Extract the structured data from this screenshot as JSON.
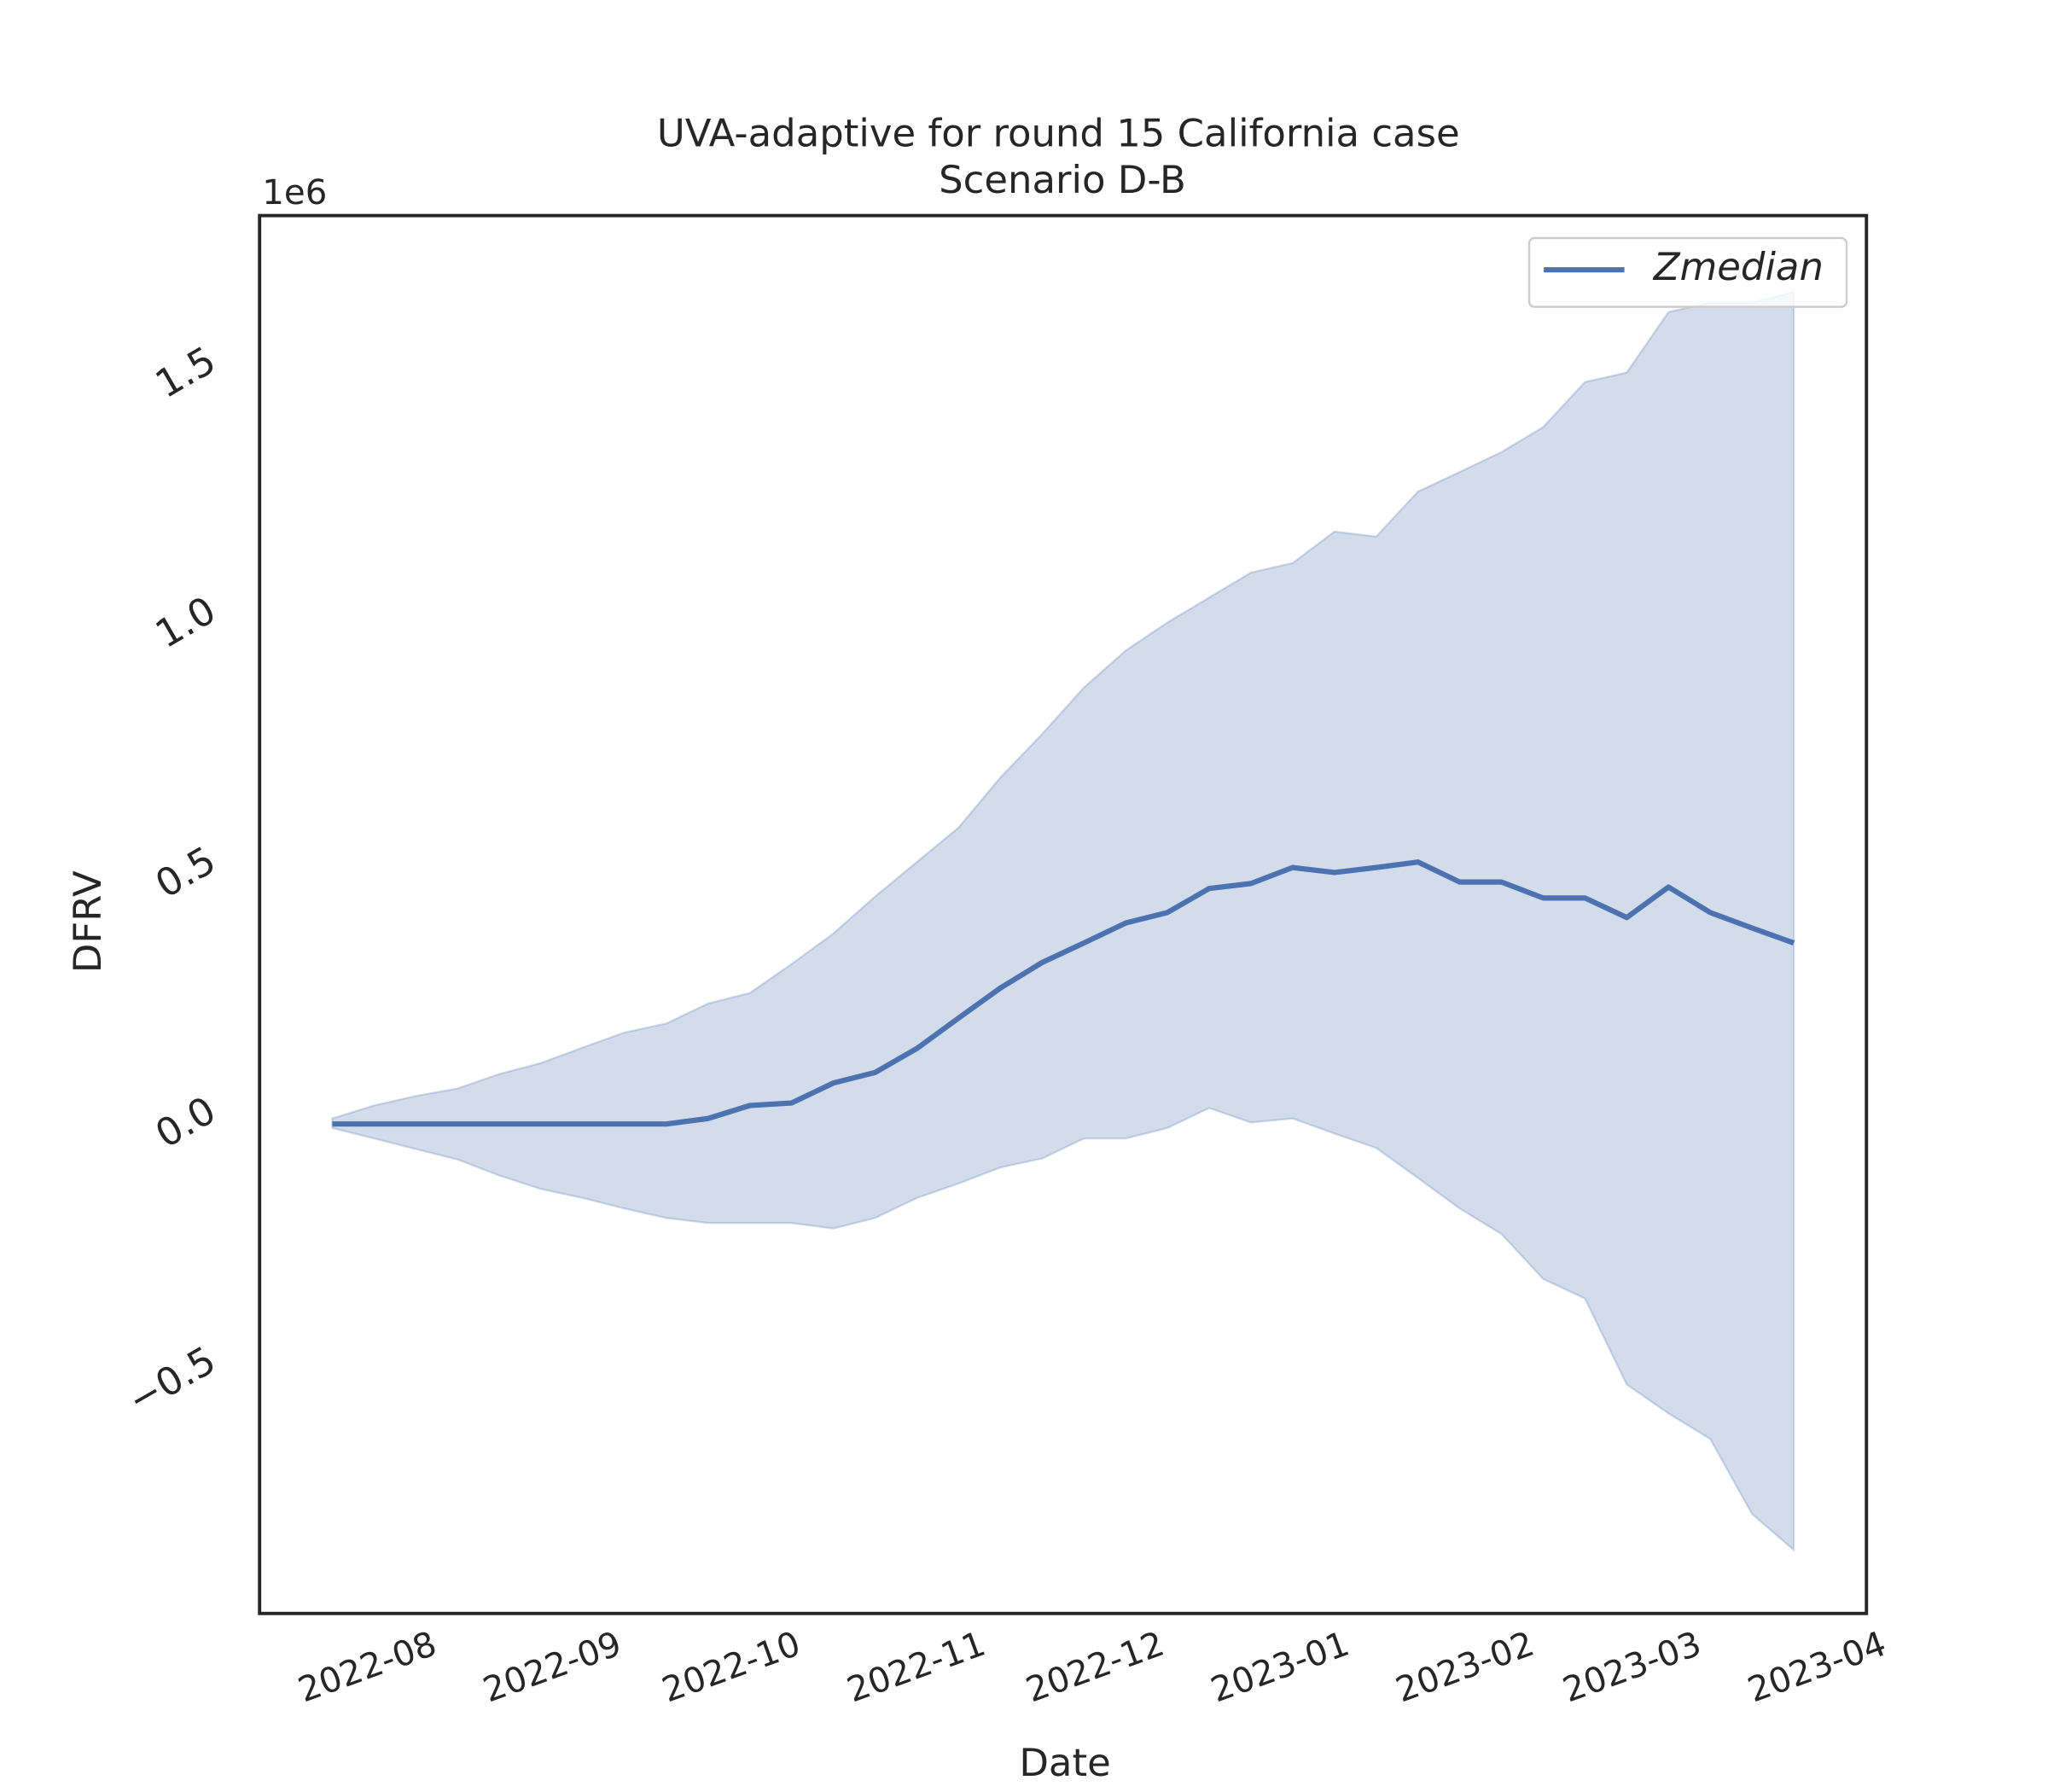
{
  "chart_data": {
    "type": "line",
    "title": "UVA-adaptive for round 15 California case",
    "subtitle": "Scenario D-B",
    "x_label": "Date",
    "y_label": "DFRV",
    "y_offset_label": "1e6",
    "x": [
      0,
      1,
      2,
      3,
      4,
      5,
      6,
      7,
      8,
      9,
      10,
      11,
      12,
      13,
      14,
      15,
      16,
      17,
      18,
      19,
      20,
      21,
      22,
      23,
      24,
      25,
      26,
      27,
      28,
      29,
      30,
      31,
      32,
      33,
      34,
      35
    ],
    "xlim": [
      -1.74,
      36.74
    ],
    "xticks": [
      {
        "value": 0.857,
        "label": "2022-08"
      },
      {
        "value": 5.286,
        "label": "2022-09"
      },
      {
        "value": 9.571,
        "label": "2022-10"
      },
      {
        "value": 14,
        "label": "2022-11"
      },
      {
        "value": 18.286,
        "label": "2022-12"
      },
      {
        "value": 22.714,
        "label": "2023-01"
      },
      {
        "value": 27.143,
        "label": "2023-02"
      },
      {
        "value": 31.143,
        "label": "2023-03"
      },
      {
        "value": 35.571,
        "label": "2023-04"
      }
    ],
    "ylim": [
      -979000,
      1817000
    ],
    "yticks": [
      {
        "value": -500000,
        "label": "−0.5"
      },
      {
        "value": 0,
        "label": "0.0"
      },
      {
        "value": 500000,
        "label": "0.5"
      },
      {
        "value": 1000000,
        "label": "1.0"
      },
      {
        "value": 1500000,
        "label": "1.5"
      }
    ],
    "series": [
      {
        "name": "Zmedian",
        "color": "#4c72b0",
        "values": [
          0,
          0,
          0,
          0,
          0,
          0,
          0,
          0,
          0,
          11000,
          37000,
          42000,
          82000,
          103000,
          151000,
          212000,
          272000,
          323000,
          362000,
          402000,
          423000,
          471000,
          481000,
          513000,
          503000,
          513000,
          524000,
          484000,
          484000,
          452000,
          452000,
          413000,
          474000,
          423000,
          392000,
          362000
        ]
      }
    ],
    "band": {
      "color": "#4c72b0",
      "upper": [
        11000,
        37000,
        56000,
        71000,
        100000,
        122000,
        153000,
        183000,
        201000,
        241000,
        262000,
        320000,
        381000,
        455000,
        524000,
        593000,
        693000,
        780000,
        873000,
        947000,
        1003000,
        1053000,
        1103000,
        1122000,
        1185000,
        1175000,
        1265000,
        1304000,
        1344000,
        1394000,
        1484000,
        1503000,
        1624000,
        1643000,
        1643000,
        1664000
      ],
      "lower": [
        -8000,
        -29000,
        -50000,
        -71000,
        -103000,
        -130000,
        -148000,
        -169000,
        -188000,
        -198000,
        -198000,
        -198000,
        -209000,
        -188000,
        -148000,
        -119000,
        -87000,
        -69000,
        -29000,
        -29000,
        -8000,
        32000,
        3000,
        11000,
        -19000,
        -48000,
        -108000,
        -169000,
        -220000,
        -310000,
        -349000,
        -521000,
        -579000,
        -630000,
        -780000,
        -852000
      ]
    },
    "legend": "upper right"
  }
}
